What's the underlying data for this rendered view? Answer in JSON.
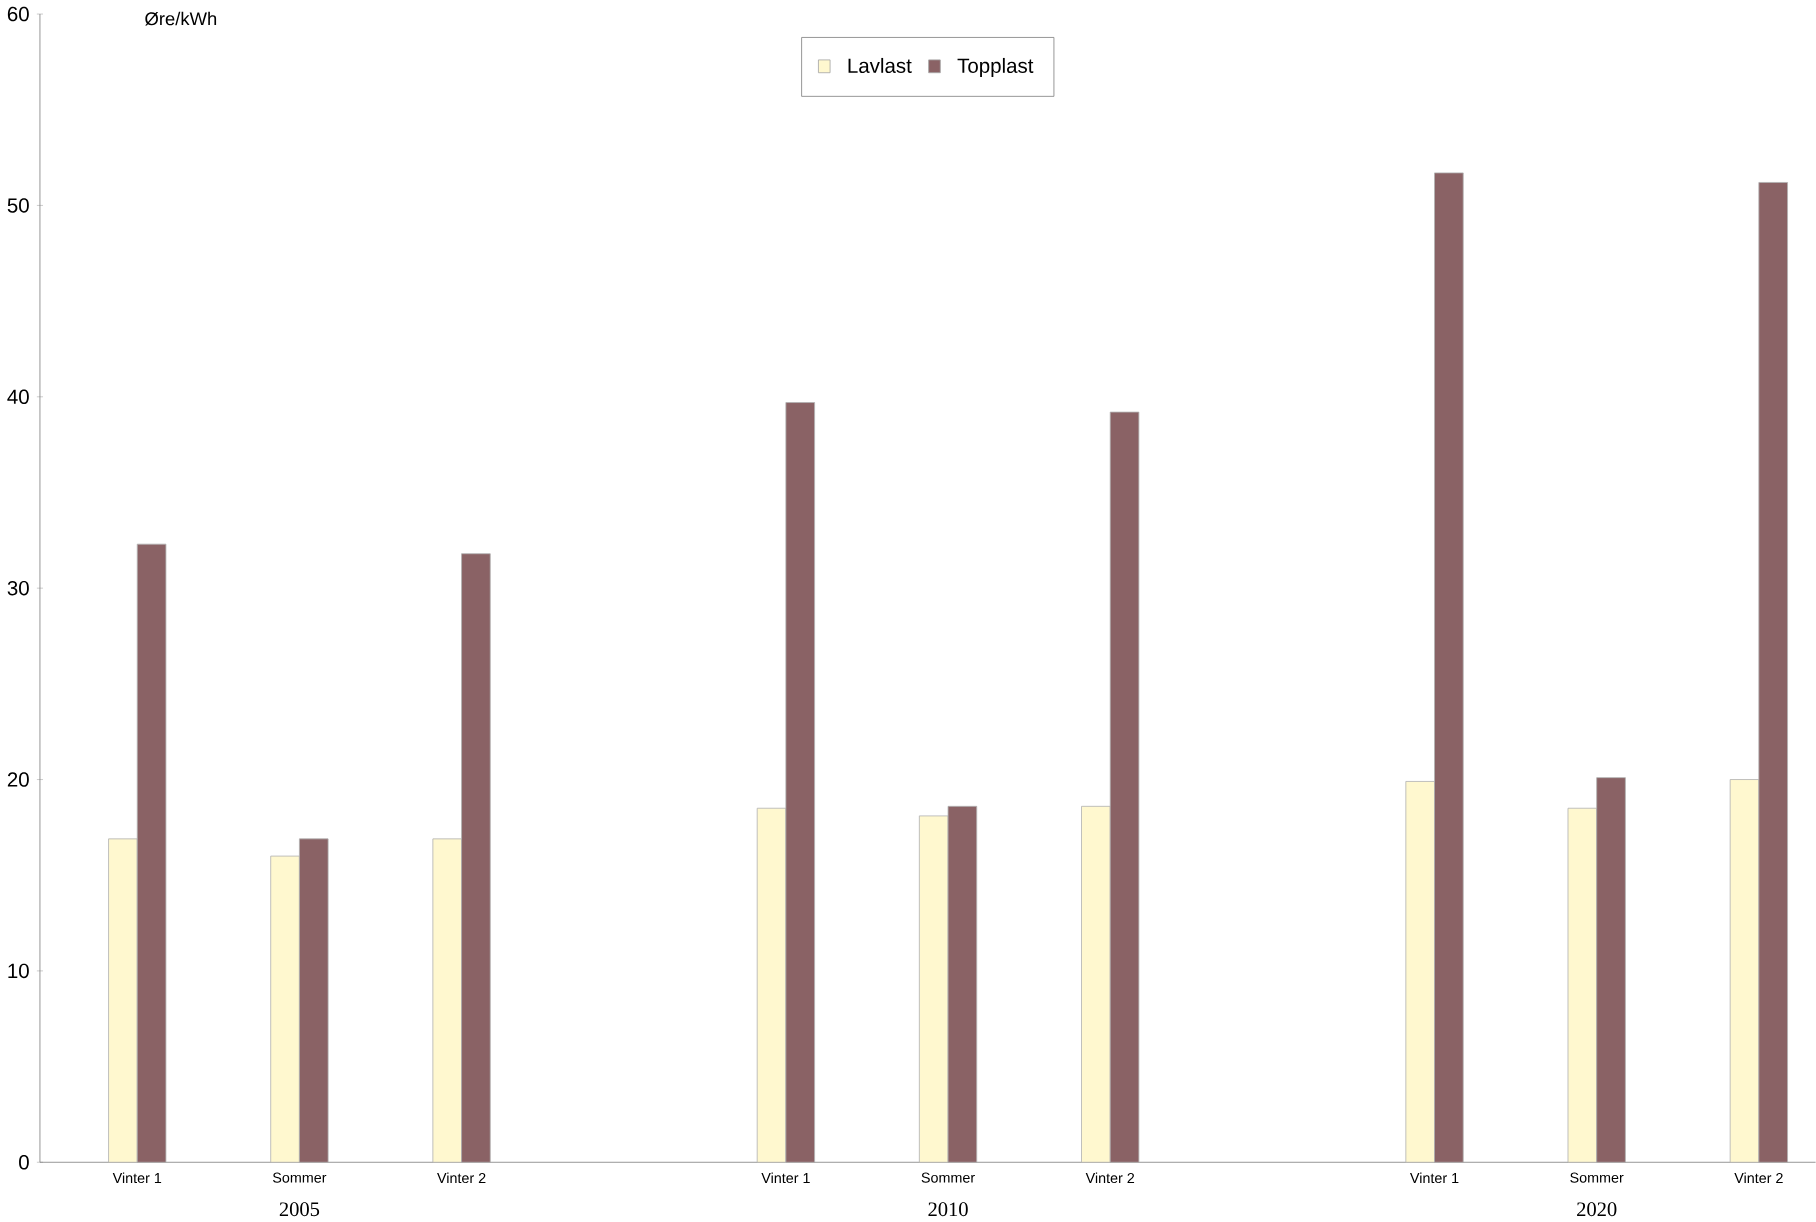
{
  "chart_data": {
    "type": "bar",
    "ylabel": "Øre/kWh",
    "categories": [
      "Vinter 1",
      "Sommer",
      "Vinter 2",
      null,
      "Vinter 1",
      "Sommer",
      "Vinter 2",
      null,
      "Vinter 1",
      "Sommer",
      "Vinter 2"
    ],
    "series": [
      {
        "name": "Lavlast",
        "color": "#fff8cf",
        "values": [
          16.9,
          16.0,
          16.9,
          null,
          18.5,
          18.1,
          18.6,
          null,
          19.9,
          18.5,
          20.0
        ]
      },
      {
        "name": "Topplast",
        "color": "#8a6265",
        "values": [
          32.3,
          16.9,
          31.8,
          null,
          39.7,
          18.6,
          39.2,
          null,
          51.7,
          20.1,
          51.2
        ]
      }
    ],
    "annotations": [
      "2005",
      "2010",
      "2020"
    ],
    "ylim": [
      0,
      60
    ],
    "yticks": [
      0,
      10,
      20,
      30,
      40,
      50,
      60
    ],
    "grid": false,
    "legend": "top"
  }
}
